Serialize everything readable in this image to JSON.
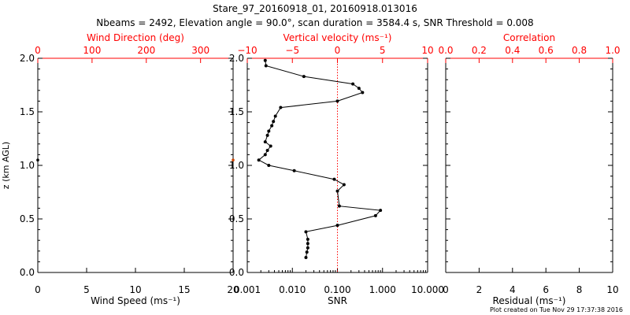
{
  "figure": {
    "title_line1": "Stare_97_20160918_01, 20160918.013016",
    "title_line2": "Nbeams = 2492, Elevation angle = 90.0°, scan duration = 3584.4 s, SNR Threshold = 0.008",
    "footer": "Plot created on Tue Nov 29 17:37:38 2016",
    "z_label": "z (km AGL)"
  },
  "chart_data": [
    {
      "type": "scatter",
      "name": "wind-panel",
      "bottom_axis": {
        "label": "Wind Speed (ms⁻¹)",
        "range": [
          0,
          20
        ],
        "ticks": [
          0,
          5,
          10,
          15,
          20
        ],
        "tick_labels": [
          "0",
          "5",
          "10",
          "15",
          "20"
        ]
      },
      "top_axis": {
        "label": "Wind Direction (deg)",
        "color": "#ff0000",
        "range": [
          0,
          360
        ],
        "ticks": [
          0,
          100,
          200,
          300
        ],
        "tick_labels": [
          "0",
          "100",
          "200",
          "300"
        ]
      },
      "y_axis": {
        "range": [
          0,
          2
        ],
        "ticks": [
          0,
          0.5,
          1,
          1.5,
          2
        ],
        "tick_labels": [
          "0.0",
          "0.5",
          "1.0",
          "1.5",
          "2.0"
        ]
      },
      "speed_points": [
        {
          "x": 0,
          "z": 1.05
        }
      ],
      "direction_points": [
        {
          "x": 360,
          "z": 1.05
        }
      ]
    },
    {
      "type": "line",
      "name": "snr-velocity-panel",
      "bottom_axis": {
        "label": "SNR",
        "scale": "log",
        "range": [
          0.001,
          10
        ],
        "ticks": [
          0.001,
          0.01,
          0.1,
          1,
          10
        ],
        "tick_labels": [
          "0.001",
          "0.010",
          "0.100",
          "1.000",
          "10.000"
        ]
      },
      "top_axis": {
        "label": "Vertical velocity (ms⁻¹)",
        "color": "#ff0000",
        "range": [
          -10,
          10
        ],
        "ticks": [
          -10,
          -5,
          0,
          5,
          10
        ],
        "tick_labels": [
          "−10",
          "−5",
          "0",
          "5",
          "10"
        ]
      },
      "y_axis": {
        "range": [
          0,
          2
        ],
        "ticks": [
          0,
          0.5,
          1,
          1.5,
          2
        ],
        "tick_labels": [
          "0.0",
          "0.5",
          "1.0",
          "1.5",
          "2.0"
        ]
      },
      "zero_line_color": "#ff0000",
      "snr_profile": [
        {
          "snr": 0.0025,
          "z": 1.98
        },
        {
          "snr": 0.0026,
          "z": 1.93
        },
        {
          "snr": 0.018,
          "z": 1.83
        },
        {
          "snr": 0.22,
          "z": 1.76
        },
        {
          "snr": 0.3,
          "z": 1.72
        },
        {
          "snr": 0.36,
          "z": 1.68
        },
        {
          "snr": 0.1,
          "z": 1.6
        },
        {
          "snr": 0.0055,
          "z": 1.54
        },
        {
          "snr": 0.0042,
          "z": 1.46
        },
        {
          "snr": 0.0038,
          "z": 1.41
        },
        {
          "snr": 0.0035,
          "z": 1.37
        },
        {
          "snr": 0.003,
          "z": 1.32
        },
        {
          "snr": 0.0028,
          "z": 1.28
        },
        {
          "snr": 0.0025,
          "z": 1.22
        },
        {
          "snr": 0.0033,
          "z": 1.18
        },
        {
          "snr": 0.0028,
          "z": 1.14
        },
        {
          "snr": 0.0025,
          "z": 1.1
        },
        {
          "snr": 0.0018,
          "z": 1.05
        },
        {
          "snr": 0.003,
          "z": 1.0
        },
        {
          "snr": 0.011,
          "z": 0.95
        },
        {
          "snr": 0.085,
          "z": 0.87
        },
        {
          "snr": 0.14,
          "z": 0.82
        },
        {
          "snr": 0.1,
          "z": 0.76
        },
        {
          "snr": 0.11,
          "z": 0.62
        },
        {
          "snr": 0.9,
          "z": 0.58
        },
        {
          "snr": 0.7,
          "z": 0.53
        },
        {
          "snr": 0.1,
          "z": 0.44
        },
        {
          "snr": 0.02,
          "z": 0.38
        },
        {
          "snr": 0.022,
          "z": 0.31
        },
        {
          "snr": 0.022,
          "z": 0.27
        },
        {
          "snr": 0.022,
          "z": 0.23
        },
        {
          "snr": 0.021,
          "z": 0.19
        },
        {
          "snr": 0.02,
          "z": 0.14
        }
      ]
    },
    {
      "type": "scatter",
      "name": "residual-panel",
      "bottom_axis": {
        "label": "Residual (ms⁻¹)",
        "range": [
          0,
          10
        ],
        "ticks": [
          0,
          2,
          4,
          6,
          8,
          10
        ],
        "tick_labels": [
          "0",
          "2",
          "4",
          "6",
          "8",
          "10"
        ]
      },
      "top_axis": {
        "label": "Correlation",
        "color": "#ff0000",
        "range": [
          0,
          1
        ],
        "ticks": [
          0,
          0.2,
          0.4,
          0.6,
          0.8,
          1
        ],
        "tick_labels": [
          "0.0",
          "0.2",
          "0.4",
          "0.6",
          "0.8",
          "1.0"
        ]
      },
      "y_axis": {
        "range": [
          0,
          2
        ],
        "ticks": [
          0,
          0.5,
          1,
          1.5,
          2
        ],
        "tick_labels": [
          "",
          "",
          "",
          "",
          ""
        ]
      }
    }
  ]
}
